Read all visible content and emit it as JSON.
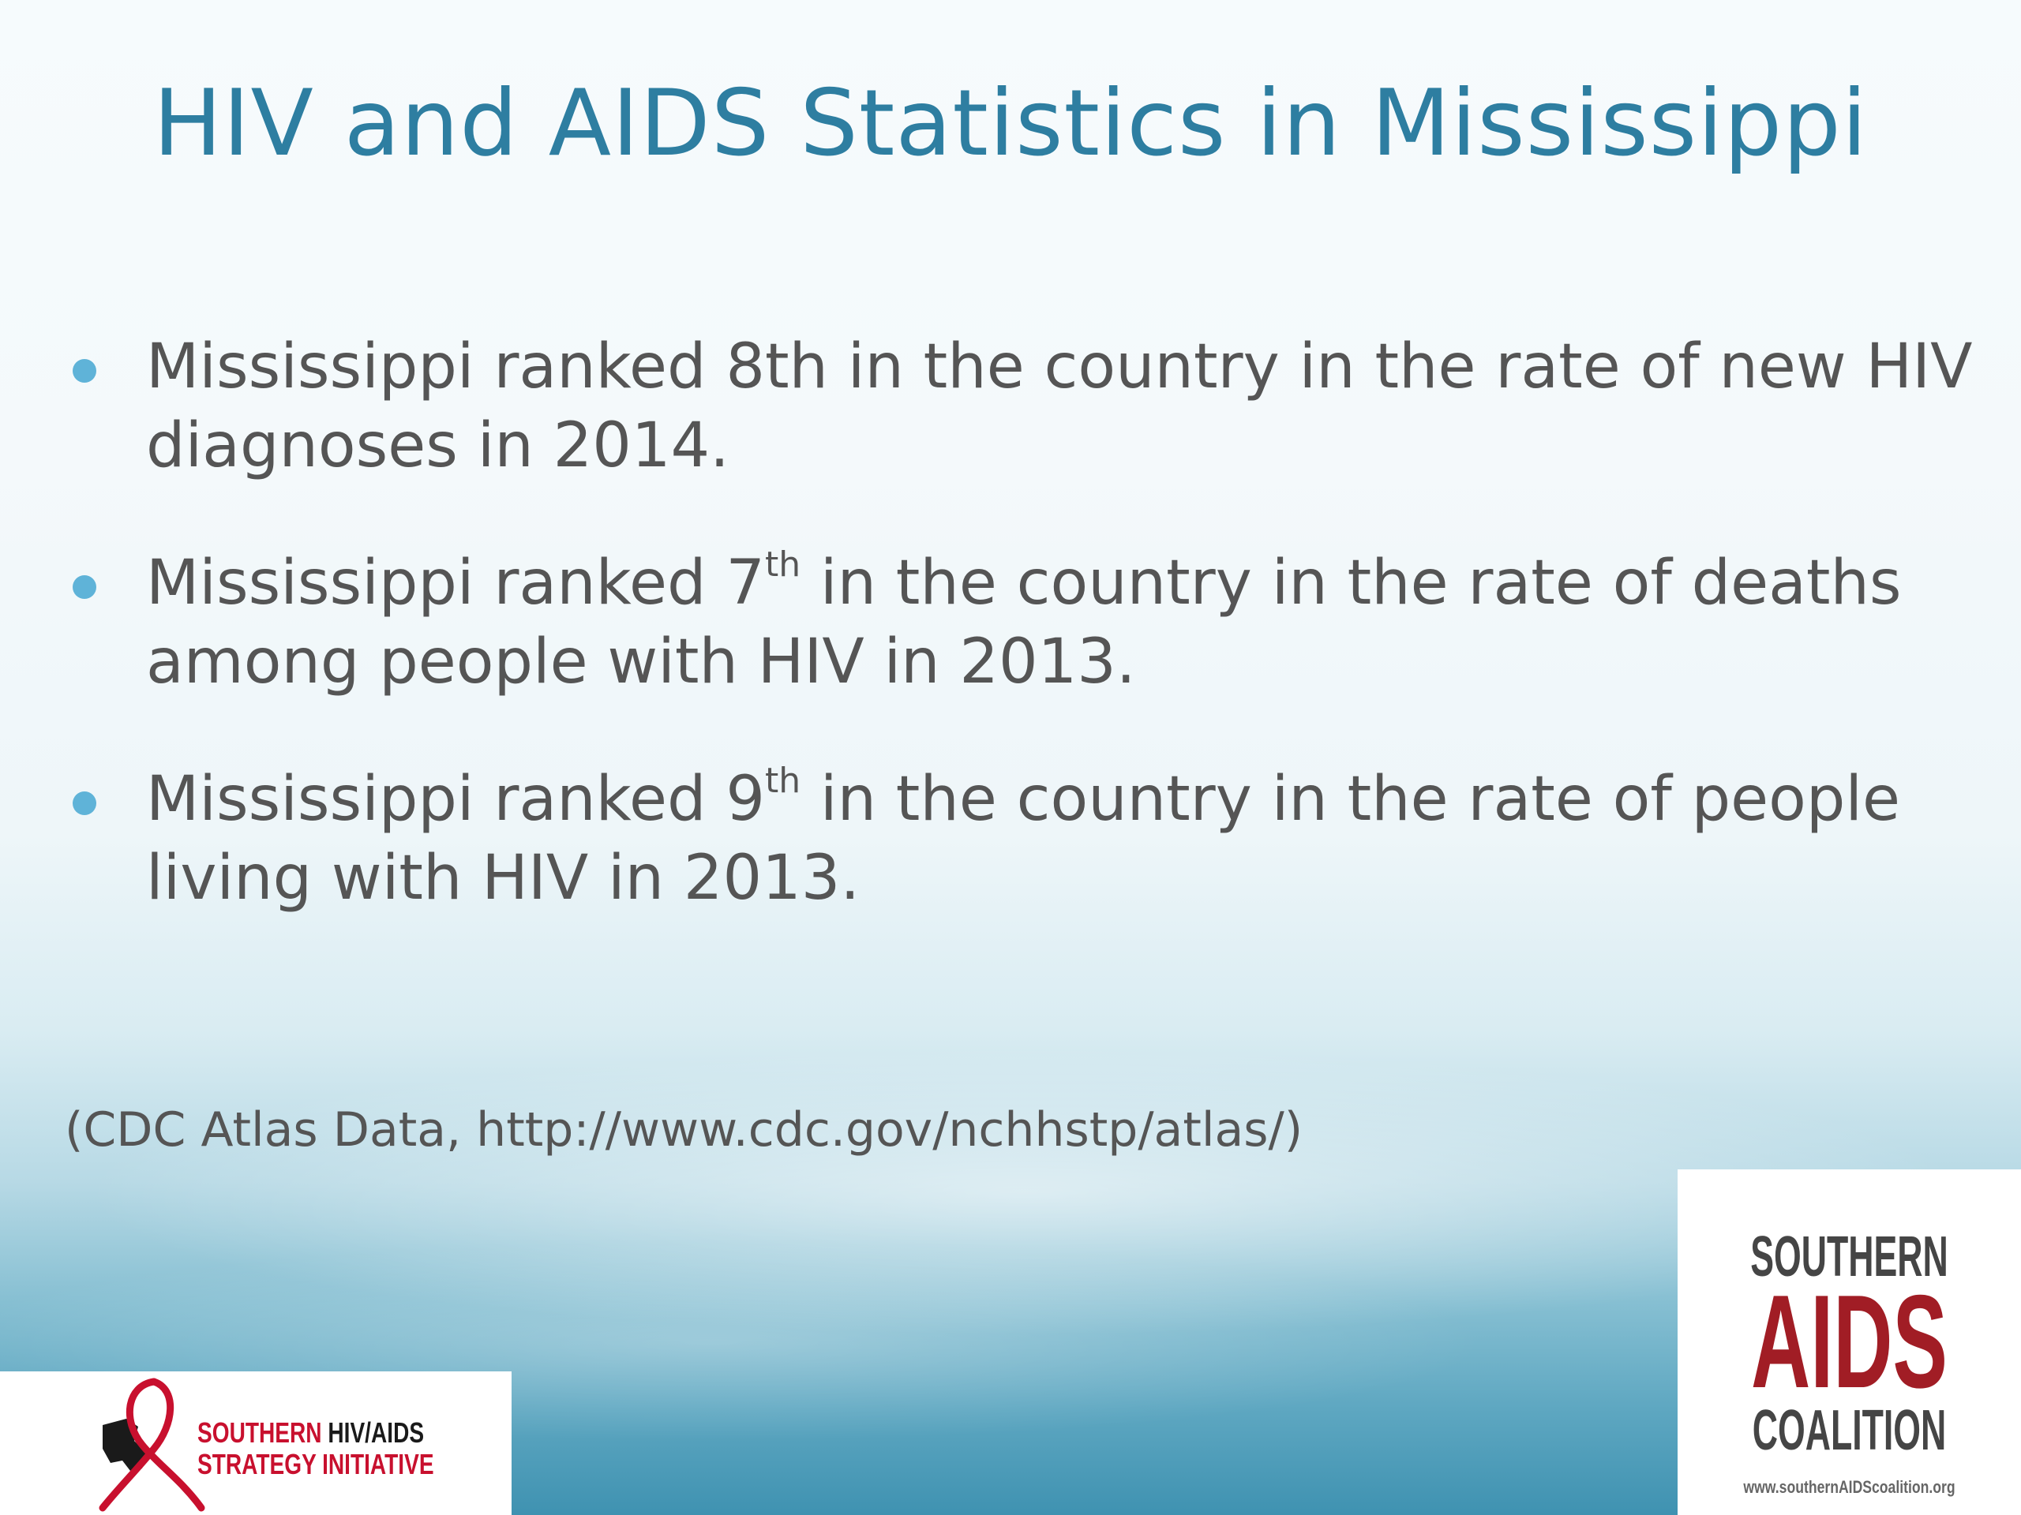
{
  "slide": {
    "title": "HIV and AIDS Statistics in Mississippi",
    "bullets": [
      {
        "before": "Mississippi ranked 8th in the country in the rate of  new HIV diagnoses in 2014.",
        "sup": "",
        "after": ""
      },
      {
        "before": "Mississippi ranked 7",
        "sup": "th",
        "after": " in the country in the rate of deaths among people with HIV in 2013."
      },
      {
        "before": "Mississippi ranked 9",
        "sup": "th",
        "after": " in the country in the rate of people living with HIV in 2013."
      }
    ],
    "source": "(CDC Atlas Data, http://www.cdc.gov/nchhstp/atlas/)"
  },
  "logos": {
    "left": {
      "line1_red": "SOUTHERN",
      "line1_black": " HIV/AIDS",
      "line2": "STRATEGY INITIATIVE"
    },
    "right": {
      "line1": "SOUTHERN",
      "line2": "AIDS",
      "line3": "COALITION",
      "url": "www.southernAIDScoalition.org"
    }
  },
  "colors": {
    "title": "#2e7ea1",
    "body_text": "#555555",
    "bullet": "#5fb3d8",
    "logo_red": "#a11d25"
  }
}
